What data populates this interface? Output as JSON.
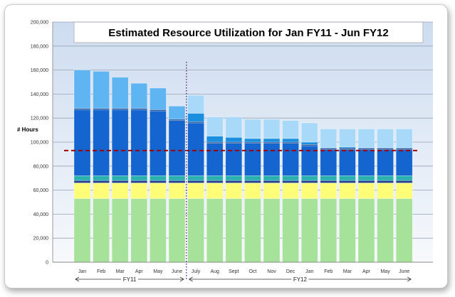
{
  "chart_data": {
    "type": "bar",
    "stacked": true,
    "title": "Estimated Resource Utilization for Jan FY11 - Jun FY12",
    "ylabel": "# Hours",
    "ylim": [
      0,
      200000
    ],
    "yticks": [
      0,
      20000,
      40000,
      60000,
      80000,
      100000,
      120000,
      140000,
      160000,
      180000,
      200000
    ],
    "ytick_labels": [
      "0",
      "20,000",
      "40,000",
      "60,000",
      "80,000",
      "100,000",
      "120,000",
      "140,000",
      "160,000",
      "180,000",
      "200,000"
    ],
    "categories": [
      "Jan",
      "Feb",
      "Mar",
      "Apr",
      "May",
      "June",
      "July",
      "Aug",
      "Sept",
      "Oct",
      "Nov",
      "Dec",
      "Jan",
      "Feb",
      "Mar",
      "Apr",
      "May",
      "June"
    ],
    "series": [
      {
        "color": "#a6e29a",
        "values": [
          53000,
          53000,
          53000,
          53000,
          53000,
          53000,
          53000,
          53000,
          53000,
          53000,
          53000,
          53000,
          53000,
          53000,
          53000,
          53000,
          53000,
          53000
        ]
      },
      {
        "color": "#fdfd78",
        "values": [
          13000,
          13000,
          13000,
          13000,
          13000,
          13000,
          13000,
          13000,
          13000,
          13000,
          13000,
          13000,
          13000,
          13000,
          13000,
          13000,
          13000,
          13000
        ]
      },
      {
        "color": "#1f3d8c",
        "values": [
          2000,
          2000,
          2000,
          2000,
          2000,
          2000,
          2000,
          2000,
          2000,
          2000,
          2000,
          2000,
          2000,
          2000,
          2000,
          2000,
          2000,
          2000
        ]
      },
      {
        "color": "#2bb0b0",
        "values": [
          4000,
          4000,
          4000,
          4000,
          4000,
          4000,
          4000,
          4000,
          4000,
          4000,
          4000,
          4000,
          4000,
          4000,
          4000,
          4000,
          4000,
          4000
        ]
      },
      {
        "color": "#1565d0",
        "values": [
          55000,
          55000,
          55000,
          55000,
          54000,
          46000,
          44000,
          27000,
          27000,
          27000,
          27000,
          27000,
          25000,
          22000,
          22000,
          22000,
          22000,
          22000
        ]
      },
      {
        "color": "#0e3f8a",
        "values": [
          1000,
          1000,
          1000,
          1000,
          1000,
          1000,
          1000,
          1000,
          1000,
          1000,
          1000,
          1000,
          1000,
          1000,
          1000,
          1000,
          1000,
          1000
        ]
      },
      {
        "color": "#1a8fe0",
        "values": [
          0,
          0,
          0,
          0,
          0,
          0,
          7000,
          5000,
          4000,
          3000,
          3000,
          3000,
          2000,
          0,
          1000,
          0,
          0,
          0
        ]
      },
      {
        "color": "#5fb4f2",
        "values": [
          32000,
          31000,
          26000,
          21000,
          18000,
          11000,
          0,
          0,
          0,
          0,
          0,
          0,
          0,
          0,
          0,
          0,
          0,
          0
        ]
      },
      {
        "color": "#a9d9f8",
        "values": [
          0,
          0,
          0,
          0,
          0,
          0,
          15000,
          16000,
          17000,
          16000,
          16000,
          15000,
          16000,
          16000,
          15000,
          16000,
          16000,
          16000
        ]
      }
    ],
    "reference_line": {
      "value": 93000,
      "color": "#a30000",
      "style": "dashed"
    },
    "divider": {
      "between": [
        "June",
        "July"
      ],
      "color": "#5a2a82",
      "style": "dotted"
    },
    "groups": [
      {
        "label": "FY11",
        "from": "Jan",
        "to": "June"
      },
      {
        "label": "FY12",
        "from": "July",
        "to": "June"
      }
    ],
    "grid": true,
    "legend": "none"
  }
}
